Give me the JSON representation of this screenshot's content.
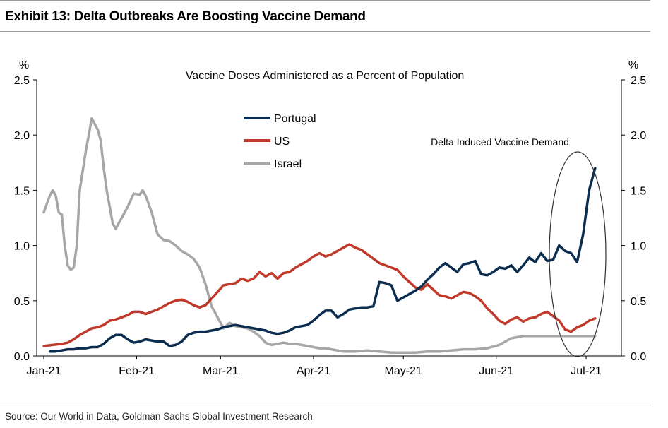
{
  "header": {
    "title": "Exhibit 13: Delta Outbreaks Are Boosting Vaccine Demand"
  },
  "footer": {
    "source": "Source: Our World in Data, Goldman Sachs Global Investment Research"
  },
  "chart_data": {
    "type": "line",
    "title": "Vaccine Doses Administered as a Percent of Population",
    "ylabel_left": "%",
    "ylabel_right": "%",
    "ylim": [
      0,
      2.5
    ],
    "yticks": [
      "0.0",
      "0.5",
      "1.0",
      "1.5",
      "2.0",
      "2.5"
    ],
    "xlim": [
      0,
      189
    ],
    "xticks": [
      {
        "label": "Jan-21",
        "day": 0
      },
      {
        "label": "Feb-21",
        "day": 31
      },
      {
        "label": "Mar-21",
        "day": 59
      },
      {
        "label": "Apr-21",
        "day": 90
      },
      {
        "label": "May-21",
        "day": 120
      },
      {
        "label": "Jun-21",
        "day": 151
      },
      {
        "label": "Jul-21",
        "day": 181
      }
    ],
    "legend_position": "top-center",
    "annotation": "Delta Induced Vaccine Demand",
    "colors": {
      "Portugal": "#0b2d4f",
      "US": "#c0392b",
      "Israel": "#a6a6a6"
    },
    "series": [
      {
        "name": "Portugal",
        "x": [
          2,
          4,
          6,
          8,
          10,
          12,
          14,
          16,
          18,
          20,
          22,
          24,
          26,
          28,
          30,
          32,
          34,
          36,
          38,
          40,
          42,
          44,
          46,
          48,
          50,
          52,
          54,
          56,
          58,
          60,
          62,
          64,
          66,
          68,
          70,
          72,
          74,
          76,
          78,
          80,
          82,
          84,
          86,
          88,
          90,
          92,
          94,
          96,
          98,
          100,
          102,
          104,
          106,
          108,
          110,
          112,
          114,
          116,
          118,
          120,
          122,
          124,
          126,
          128,
          130,
          132,
          134,
          136,
          138,
          140,
          142,
          144,
          146,
          148,
          150,
          152,
          154,
          156,
          158,
          160,
          162,
          164,
          166,
          168,
          170,
          172,
          174,
          176,
          178,
          180,
          182,
          184
        ],
        "values": [
          0.04,
          0.04,
          0.05,
          0.06,
          0.06,
          0.07,
          0.07,
          0.08,
          0.08,
          0.11,
          0.16,
          0.19,
          0.19,
          0.15,
          0.12,
          0.13,
          0.15,
          0.14,
          0.13,
          0.13,
          0.09,
          0.1,
          0.13,
          0.19,
          0.21,
          0.22,
          0.22,
          0.23,
          0.24,
          0.26,
          0.27,
          0.28,
          0.27,
          0.26,
          0.25,
          0.24,
          0.23,
          0.21,
          0.2,
          0.21,
          0.23,
          0.26,
          0.27,
          0.28,
          0.32,
          0.37,
          0.41,
          0.41,
          0.35,
          0.38,
          0.42,
          0.43,
          0.44,
          0.44,
          0.45,
          0.67,
          0.66,
          0.64,
          0.5,
          0.53,
          0.56,
          0.59,
          0.63,
          0.69,
          0.74,
          0.8,
          0.84,
          0.8,
          0.76,
          0.83,
          0.84,
          0.86,
          0.74,
          0.73,
          0.76,
          0.8,
          0.79,
          0.82,
          0.76,
          0.82,
          0.89,
          0.85,
          0.93,
          0.86,
          0.87,
          1.0,
          0.95,
          0.93,
          0.85,
          1.1,
          1.5,
          1.7
        ]
      },
      {
        "name": "US",
        "x": [
          0,
          3,
          6,
          8,
          10,
          12,
          14,
          16,
          18,
          20,
          22,
          24,
          26,
          28,
          30,
          32,
          34,
          36,
          38,
          40,
          42,
          44,
          46,
          48,
          50,
          52,
          54,
          56,
          58,
          60,
          62,
          64,
          66,
          68,
          70,
          72,
          74,
          76,
          78,
          80,
          82,
          84,
          86,
          88,
          90,
          92,
          94,
          96,
          98,
          100,
          102,
          104,
          106,
          108,
          110,
          112,
          114,
          116,
          118,
          120,
          122,
          124,
          126,
          128,
          130,
          132,
          134,
          136,
          138,
          140,
          142,
          144,
          146,
          148,
          150,
          152,
          154,
          156,
          158,
          160,
          162,
          164,
          166,
          168,
          170,
          172,
          174,
          176,
          178,
          180,
          182,
          184
        ],
        "values": [
          0.09,
          0.1,
          0.11,
          0.12,
          0.15,
          0.19,
          0.22,
          0.25,
          0.26,
          0.28,
          0.32,
          0.33,
          0.35,
          0.37,
          0.4,
          0.4,
          0.38,
          0.4,
          0.42,
          0.45,
          0.48,
          0.5,
          0.51,
          0.49,
          0.46,
          0.44,
          0.46,
          0.52,
          0.58,
          0.64,
          0.65,
          0.66,
          0.7,
          0.68,
          0.7,
          0.76,
          0.72,
          0.75,
          0.7,
          0.75,
          0.76,
          0.8,
          0.83,
          0.86,
          0.9,
          0.93,
          0.9,
          0.92,
          0.95,
          0.98,
          1.01,
          0.98,
          0.96,
          0.92,
          0.88,
          0.84,
          0.82,
          0.8,
          0.78,
          0.72,
          0.67,
          0.62,
          0.6,
          0.65,
          0.6,
          0.55,
          0.54,
          0.52,
          0.55,
          0.58,
          0.57,
          0.54,
          0.5,
          0.43,
          0.38,
          0.32,
          0.29,
          0.33,
          0.35,
          0.31,
          0.34,
          0.35,
          0.38,
          0.4,
          0.36,
          0.32,
          0.24,
          0.22,
          0.26,
          0.28,
          0.32,
          0.34
        ]
      },
      {
        "name": "Israel",
        "x": [
          0,
          2,
          3,
          4,
          5,
          6,
          7,
          8,
          9,
          10,
          11,
          12,
          14,
          15,
          16,
          17,
          18,
          19,
          20,
          21,
          22,
          23,
          24,
          26,
          28,
          30,
          32,
          33,
          34,
          36,
          38,
          40,
          42,
          44,
          46,
          48,
          50,
          52,
          54,
          56,
          58,
          60,
          62,
          64,
          66,
          68,
          70,
          72,
          74,
          76,
          78,
          80,
          82,
          84,
          86,
          88,
          90,
          92,
          94,
          96,
          98,
          100,
          104,
          108,
          112,
          116,
          120,
          124,
          128,
          132,
          136,
          140,
          144,
          148,
          152,
          156,
          160,
          164,
          168,
          172,
          176,
          180,
          182,
          184
        ],
        "values": [
          1.3,
          1.45,
          1.5,
          1.45,
          1.3,
          1.28,
          1.0,
          0.82,
          0.78,
          0.8,
          1.0,
          1.5,
          1.85,
          2.0,
          2.15,
          2.1,
          2.05,
          1.95,
          1.7,
          1.5,
          1.35,
          1.2,
          1.15,
          1.25,
          1.35,
          1.47,
          1.46,
          1.5,
          1.45,
          1.3,
          1.1,
          1.05,
          1.04,
          1.0,
          0.95,
          0.92,
          0.88,
          0.8,
          0.65,
          0.45,
          0.35,
          0.25,
          0.3,
          0.27,
          0.26,
          0.25,
          0.22,
          0.18,
          0.12,
          0.1,
          0.11,
          0.12,
          0.11,
          0.11,
          0.1,
          0.09,
          0.08,
          0.07,
          0.07,
          0.06,
          0.05,
          0.04,
          0.04,
          0.05,
          0.04,
          0.03,
          0.03,
          0.03,
          0.04,
          0.04,
          0.05,
          0.06,
          0.06,
          0.07,
          0.1,
          0.16,
          0.18,
          0.18,
          0.18,
          0.18,
          0.18,
          0.18,
          0.18,
          0.18
        ]
      }
    ]
  }
}
